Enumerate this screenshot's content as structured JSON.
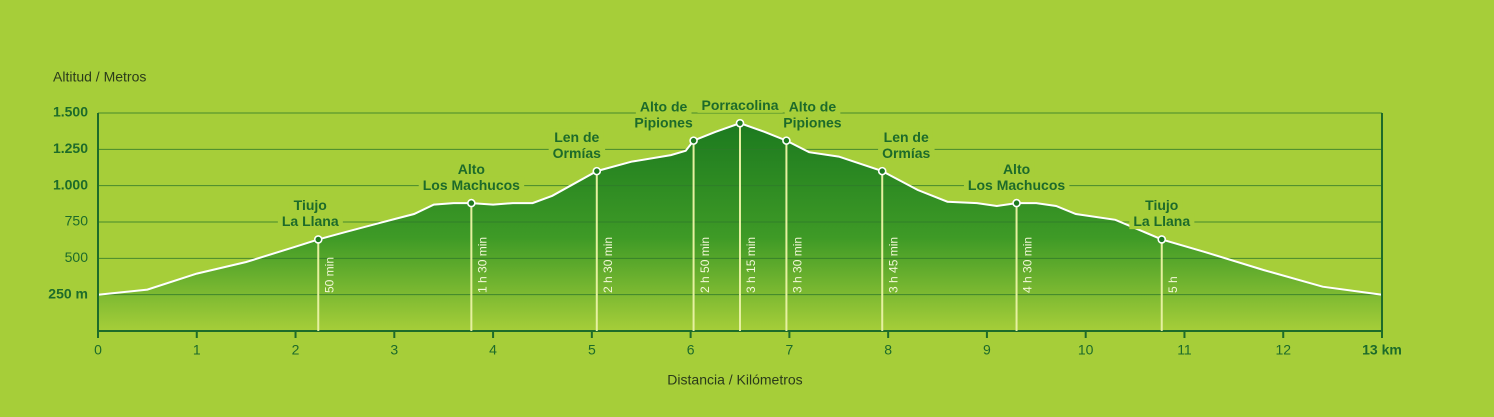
{
  "chart_data": {
    "type": "area",
    "y_label": "Altitud / Metros",
    "x_label": "Distancia / Kilómetros",
    "xlim": [
      0,
      13
    ],
    "xticks": [
      0,
      1,
      2,
      3,
      4,
      5,
      6,
      7,
      8,
      9,
      10,
      11,
      12,
      {
        "value": 13,
        "label": "13 km"
      }
    ],
    "ylim": [
      0,
      1500
    ],
    "yticks": [
      {
        "value": 250,
        "label": "250 m"
      },
      500,
      750,
      {
        "value": 1000,
        "label": "1.000"
      },
      {
        "value": 1250,
        "label": "1.250"
      },
      {
        "value": 1500,
        "label": "1.500"
      }
    ],
    "grid": true,
    "color": "#1c7a1f",
    "x": [
      0,
      0.5,
      1,
      1.5,
      2,
      2.23,
      2.5,
      3,
      3.2,
      3.4,
      3.6,
      3.78,
      4.0,
      4.2,
      4.4,
      4.6,
      5.05,
      5.4,
      5.8,
      5.95,
      6.03,
      6.25,
      6.5,
      6.75,
      6.97,
      7.2,
      7.5,
      7.94,
      8.3,
      8.6,
      8.9,
      9.1,
      9.3,
      9.5,
      9.7,
      9.9,
      10.3,
      10.77,
      11.2,
      11.8,
      12.4,
      13
    ],
    "values": [
      250,
      285,
      395,
      475,
      580,
      630,
      680,
      770,
      805,
      870,
      880,
      880,
      870,
      880,
      880,
      930,
      1100,
      1165,
      1210,
      1240,
      1310,
      1370,
      1430,
      1370,
      1310,
      1230,
      1200,
      1100,
      970,
      890,
      880,
      860,
      880,
      880,
      860,
      805,
      765,
      630,
      545,
      420,
      305,
      250
    ],
    "waypoints": [
      {
        "lines": [
          "Tiujo",
          "La Llana"
        ],
        "time": "50 min",
        "km": 2.23,
        "altitude": 630
      },
      {
        "lines": [
          "Alto",
          "Los Machucos"
        ],
        "time": "1 h 30 min",
        "km": 3.78,
        "altitude": 880
      },
      {
        "lines": [
          "Len de",
          "Ormías"
        ],
        "time": "2 h 30 min",
        "km": 5.05,
        "altitude": 1100
      },
      {
        "lines": [
          "Alto de",
          "Pipiones"
        ],
        "time": "2 h 50 min",
        "km": 6.03,
        "altitude": 1310
      },
      {
        "lines": [
          "Porracolina"
        ],
        "time": "3 h 15 min",
        "km": 6.5,
        "altitude": 1430
      },
      {
        "lines": [
          "Alto de",
          "Pipiones"
        ],
        "time": "3 h 30 min",
        "km": 6.97,
        "altitude": 1310
      },
      {
        "lines": [
          "Len de",
          "Ormías"
        ],
        "time": "3 h 45 min",
        "km": 7.94,
        "altitude": 1100
      },
      {
        "lines": [
          "Alto",
          "Los Machucos"
        ],
        "time": "4 h 30 min",
        "km": 9.3,
        "altitude": 880
      },
      {
        "lines": [
          "Tiujo",
          "La Llana"
        ],
        "time": "5 h",
        "km": 10.77,
        "altitude": 630
      }
    ]
  }
}
